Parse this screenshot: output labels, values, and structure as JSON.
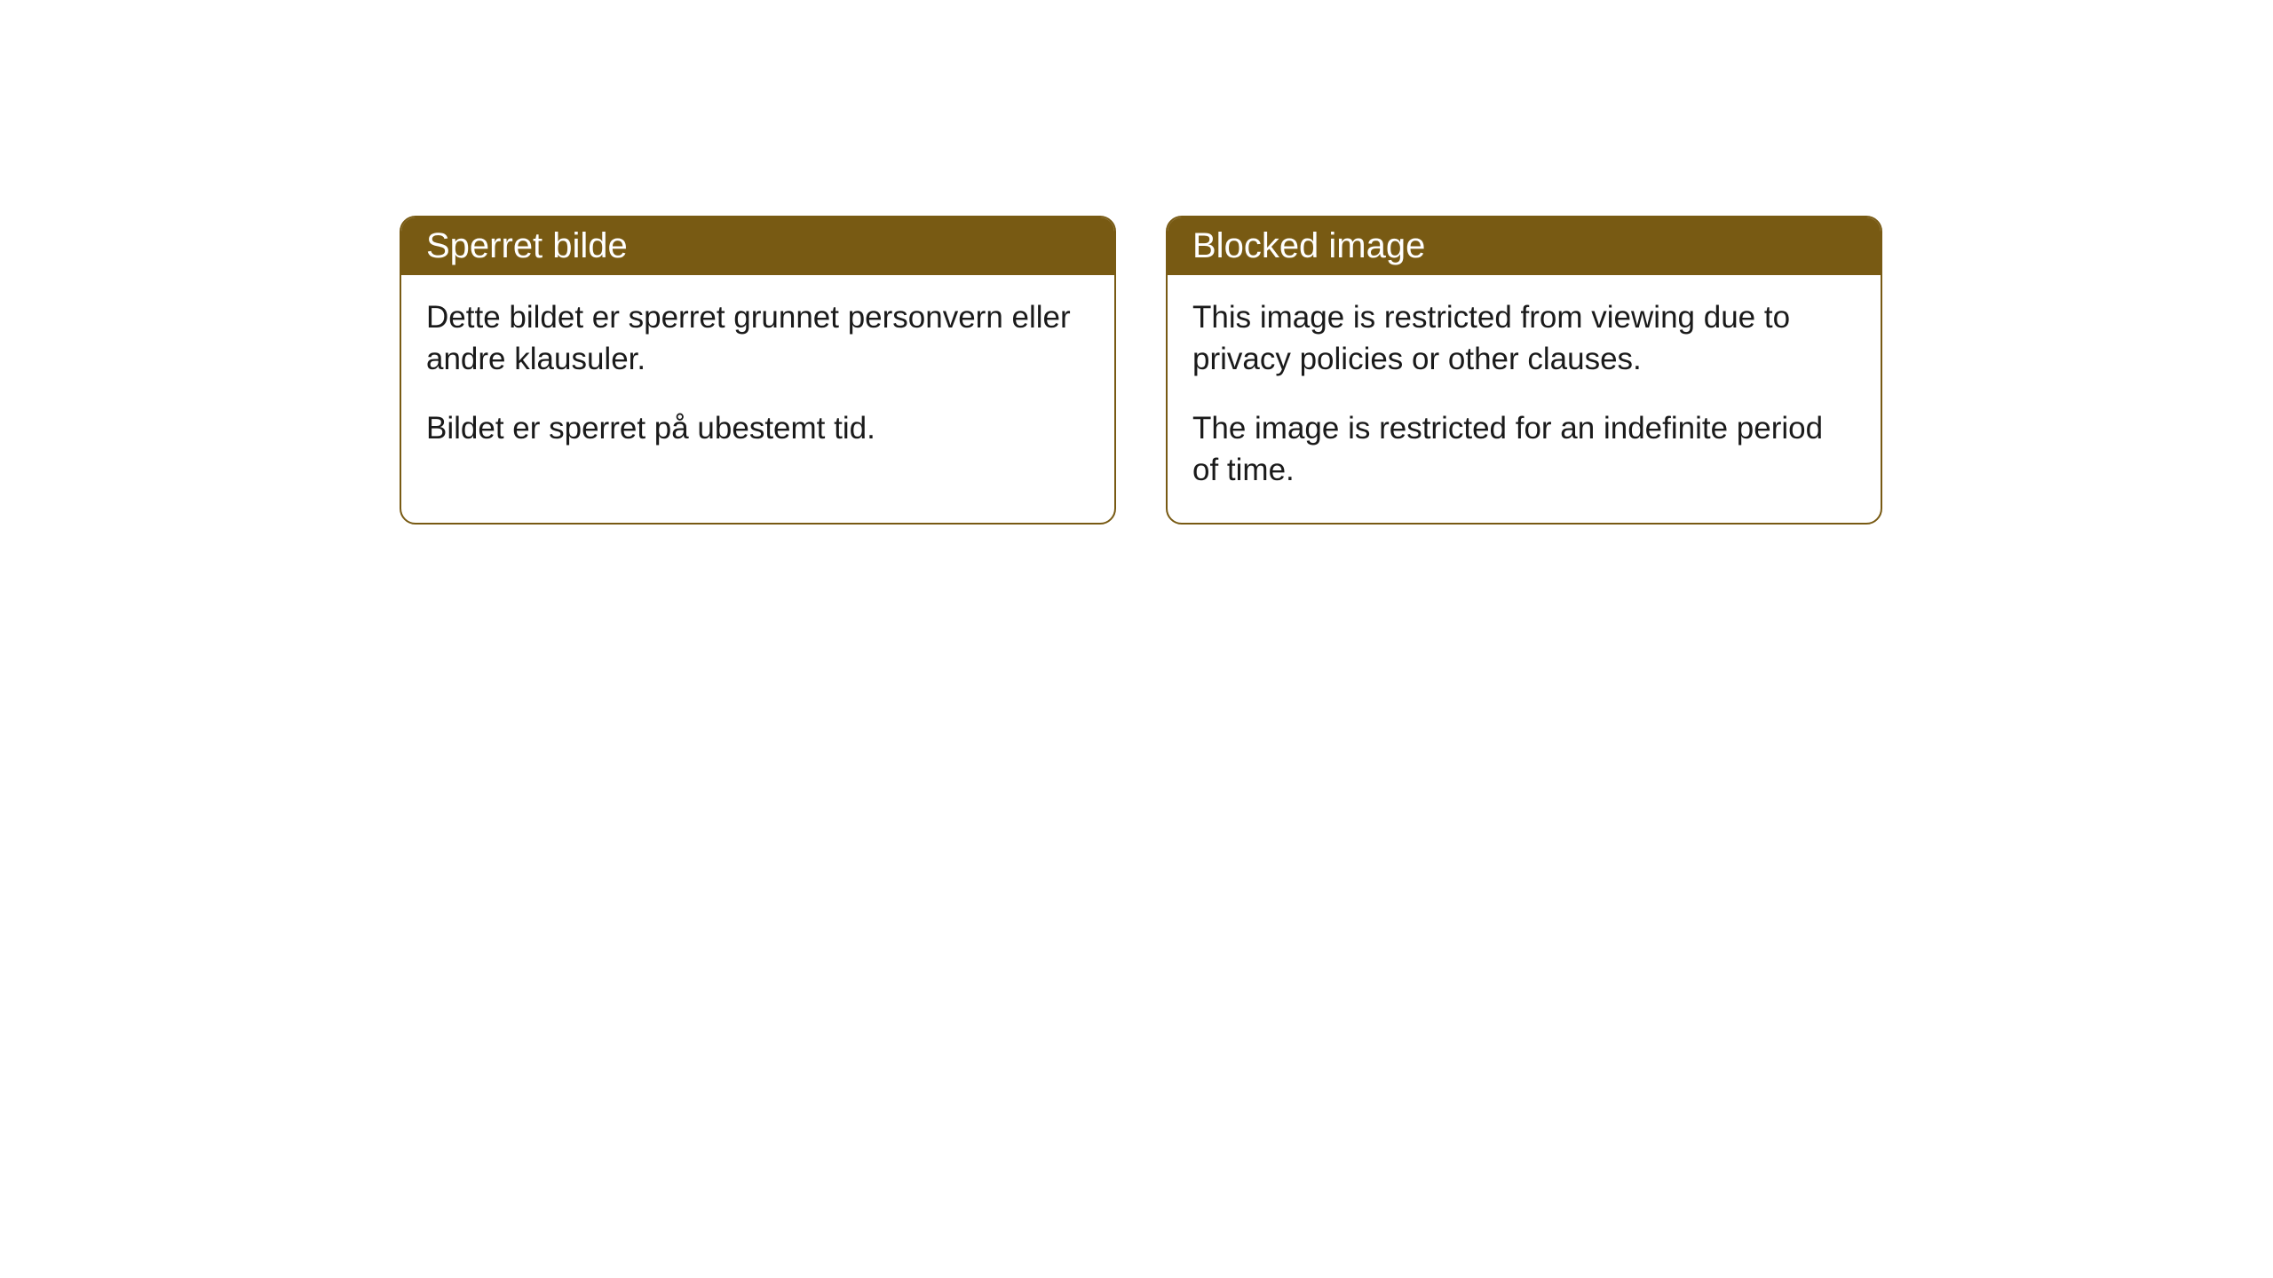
{
  "cards": [
    {
      "title": "Sperret bilde",
      "paragraph1": "Dette bildet er sperret grunnet personvern eller andre klausuler.",
      "paragraph2": "Bildet er sperret på ubestemt tid."
    },
    {
      "title": "Blocked image",
      "paragraph1": "This image is restricted from viewing due to privacy policies or other clauses.",
      "paragraph2": "The image is restricted for an indefinite period of time."
    }
  ],
  "style": {
    "header_background": "#785a13",
    "header_text_color": "#ffffff",
    "border_color": "#785a13",
    "body_background": "#ffffff",
    "body_text_color": "#1a1a1a",
    "border_radius": 18,
    "title_fontsize": 40,
    "body_fontsize": 35
  }
}
